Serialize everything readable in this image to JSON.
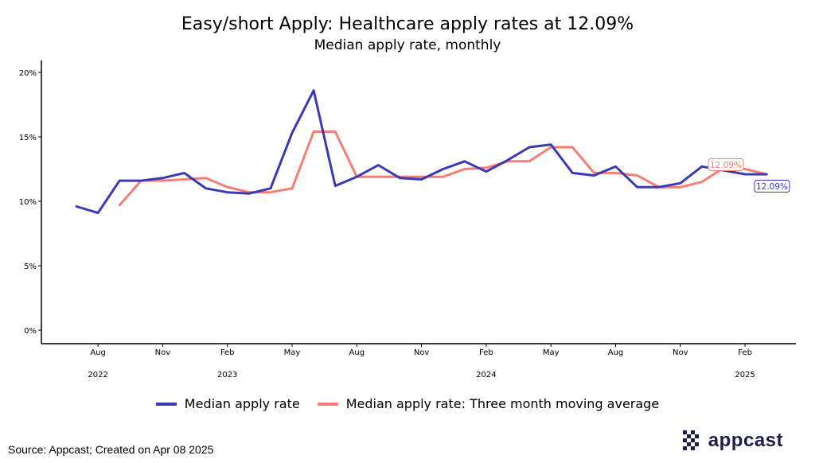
{
  "colors": {
    "series1": "#3a3ab8",
    "series2": "#f47f72",
    "logo": "#1d1d4e"
  },
  "chart_data": {
    "type": "line",
    "title": "Easy/short Apply: Healthcare apply rates at 12.09%",
    "subtitle": "Median apply rate, monthly",
    "xlabel": "",
    "ylabel": "",
    "ylim": [
      0,
      20
    ],
    "y_ticks": [
      "0%",
      "5%",
      "10%",
      "15%",
      "20%"
    ],
    "x_tick_labels": [
      "Aug",
      "Nov",
      "Feb",
      "May",
      "Aug",
      "Nov",
      "Feb",
      "May",
      "Aug",
      "Nov",
      "Feb"
    ],
    "x_tick_dates": [
      "2022-08",
      "2022-11",
      "2023-02",
      "2023-05",
      "2023-08",
      "2023-11",
      "2024-02",
      "2024-05",
      "2024-08",
      "2024-11",
      "2025-02"
    ],
    "year_labels": [
      "2022",
      "2023",
      "2024",
      "2025"
    ],
    "x": [
      "2022-07",
      "2022-08",
      "2022-09",
      "2022-10",
      "2022-11",
      "2022-12",
      "2023-01",
      "2023-02",
      "2023-03",
      "2023-04",
      "2023-05",
      "2023-06",
      "2023-07",
      "2023-08",
      "2023-09",
      "2023-10",
      "2023-11",
      "2023-12",
      "2024-01",
      "2024-02",
      "2024-03",
      "2024-04",
      "2024-05",
      "2024-06",
      "2024-07",
      "2024-08",
      "2024-09",
      "2024-10",
      "2024-11",
      "2024-12",
      "2025-01",
      "2025-02",
      "2025-03"
    ],
    "series": [
      {
        "name": "Median apply rate",
        "values": [
          9.6,
          9.1,
          11.6,
          11.6,
          11.8,
          12.2,
          11.0,
          10.7,
          10.6,
          11.0,
          15.3,
          18.6,
          11.2,
          11.9,
          12.8,
          11.8,
          11.7,
          12.5,
          13.1,
          12.3,
          13.2,
          14.2,
          14.4,
          12.2,
          12.0,
          12.7,
          11.1,
          11.1,
          11.4,
          12.7,
          12.4,
          12.1,
          12.09
        ]
      },
      {
        "name": "Median apply rate: Three month moving average",
        "values": [
          null,
          null,
          9.7,
          11.6,
          11.6,
          11.7,
          11.8,
          11.1,
          10.7,
          10.7,
          11.0,
          15.4,
          15.4,
          11.9,
          11.9,
          11.9,
          11.9,
          11.9,
          12.5,
          12.6,
          13.1,
          13.1,
          14.2,
          14.2,
          12.2,
          12.2,
          12.0,
          11.1,
          11.1,
          11.5,
          12.6,
          12.5,
          12.09
        ]
      }
    ],
    "end_labels": [
      "12.09%",
      "12.09%"
    ],
    "legend": "bottom",
    "grid": false
  },
  "source": "Source: Appcast; Created on Apr 08 2025",
  "logo_text": "appcast"
}
